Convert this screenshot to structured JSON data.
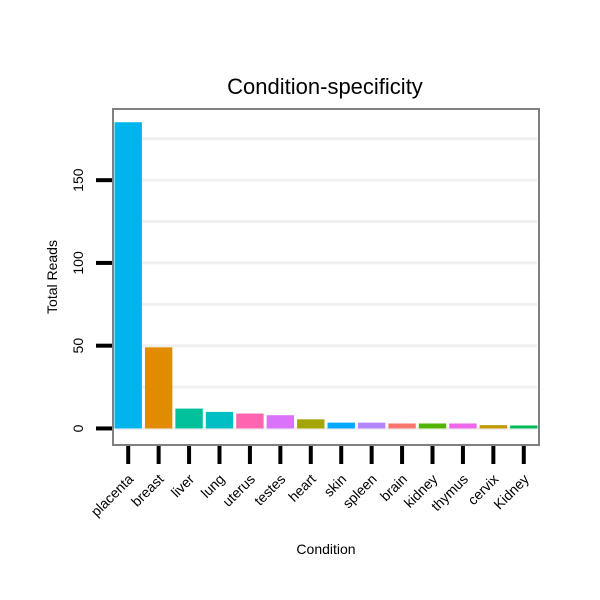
{
  "chart_data": {
    "type": "bar",
    "title": "Condition-specificity",
    "xlabel": "Condition",
    "ylabel": "Total Reads",
    "ylim": [
      -10,
      193
    ],
    "yticks": [
      0,
      50,
      100,
      150
    ],
    "categories": [
      "placenta",
      "breast",
      "liver",
      "lung",
      "uterus",
      "testes",
      "heart",
      "skin",
      "spleen",
      "brain",
      "kidney",
      "thymus",
      "cervix",
      "Kidney"
    ],
    "values": [
      185,
      49,
      12,
      10,
      9,
      8,
      5.5,
      3.5,
      3.5,
      3,
      3,
      3,
      2,
      1.8
    ],
    "colors": [
      "#00B5EB",
      "#E08B00",
      "#00C19A",
      "#00BFC4",
      "#FF64B0",
      "#DB72FB",
      "#A3A500",
      "#00A9FF",
      "#B385FF",
      "#F8766D",
      "#53B400",
      "#EF67EB",
      "#C49A00",
      "#00BC56"
    ],
    "legend": "none",
    "grid": true
  }
}
